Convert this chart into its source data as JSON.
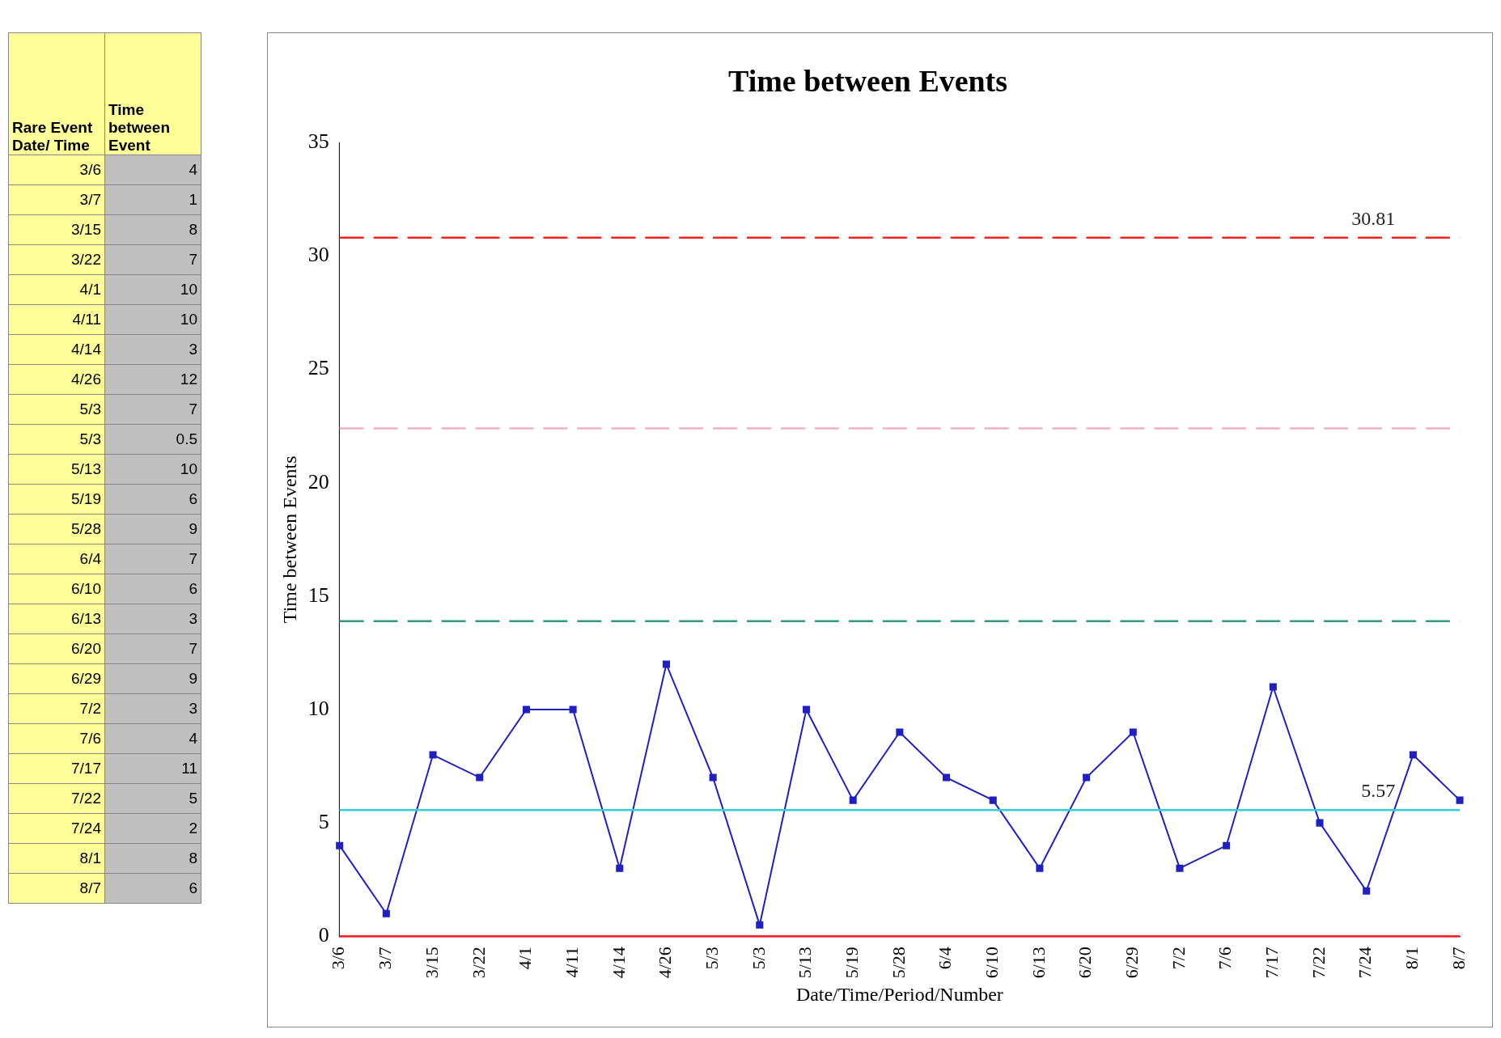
{
  "chart_data": [
    {
      "type": "other",
      "annotations": [
        "Rare Event Date/ Time",
        "Time between Event",
        "3/6",
        "4",
        "3/7",
        "1",
        "3/15",
        "8",
        "3/22",
        "7",
        "4/1",
        "10",
        "4/11",
        "10",
        "4/14",
        "3",
        "4/26",
        "12",
        "5/3",
        "7",
        "5/3",
        "0.5",
        "5/13",
        "10",
        "5/19",
        "6",
        "5/28",
        "9",
        "6/4",
        "7",
        "6/10",
        "6",
        "6/13",
        "3",
        "6/20",
        "7",
        "6/29",
        "9",
        "7/2",
        "3",
        "7/6",
        "4",
        "7/17",
        "11",
        "7/22",
        "5",
        "7/24",
        "2",
        "8/1",
        "8",
        "8/7",
        "6"
      ]
    },
    {
      "type": "line",
      "title": "Time between Events",
      "xlabel": "Date/Time/Period/Number",
      "ylabel": "Time between Events",
      "categories": [
        "3/6",
        "3/7",
        "3/15",
        "3/22",
        "4/1",
        "4/11",
        "4/14",
        "4/26",
        "5/3",
        "5/3",
        "5/13",
        "5/19",
        "5/28",
        "6/4",
        "6/10",
        "6/13",
        "6/20",
        "6/29",
        "7/2",
        "7/6",
        "7/17",
        "7/22",
        "7/24",
        "8/1",
        "8/7"
      ],
      "series": [
        {
          "color": "#2020c0",
          "values": [
            4,
            1,
            8,
            7,
            10,
            10,
            3,
            12,
            7,
            0.5,
            10,
            6,
            9,
            7,
            6,
            3,
            7,
            9,
            3,
            4,
            11,
            5,
            2,
            8,
            6
          ]
        }
      ],
      "ylim": [
        0,
        35
      ],
      "yticks": [
        0,
        5,
        10,
        15,
        20,
        25,
        30,
        35
      ],
      "grid": false,
      "legend": false,
      "marker": "square",
      "line_style": "solid",
      "ref_lines": [
        {
          "axis": "y",
          "value": 30.81,
          "label": "30.81",
          "color": "#ff2020",
          "line_style": "dashed"
        },
        {
          "axis": "y",
          "value": 22.4,
          "label": null,
          "color": "#f4b0c4",
          "line_style": "dashed"
        },
        {
          "axis": "y",
          "value": 13.9,
          "label": null,
          "color": "#339980",
          "line_style": "dashed"
        },
        {
          "axis": "y",
          "value": 5.57,
          "label": "5.57",
          "color": "#30d0d8",
          "line_style": "solid"
        },
        {
          "axis": "y",
          "value": 0,
          "label": null,
          "color": "#ff2020",
          "line_style": "solid"
        }
      ]
    }
  ]
}
